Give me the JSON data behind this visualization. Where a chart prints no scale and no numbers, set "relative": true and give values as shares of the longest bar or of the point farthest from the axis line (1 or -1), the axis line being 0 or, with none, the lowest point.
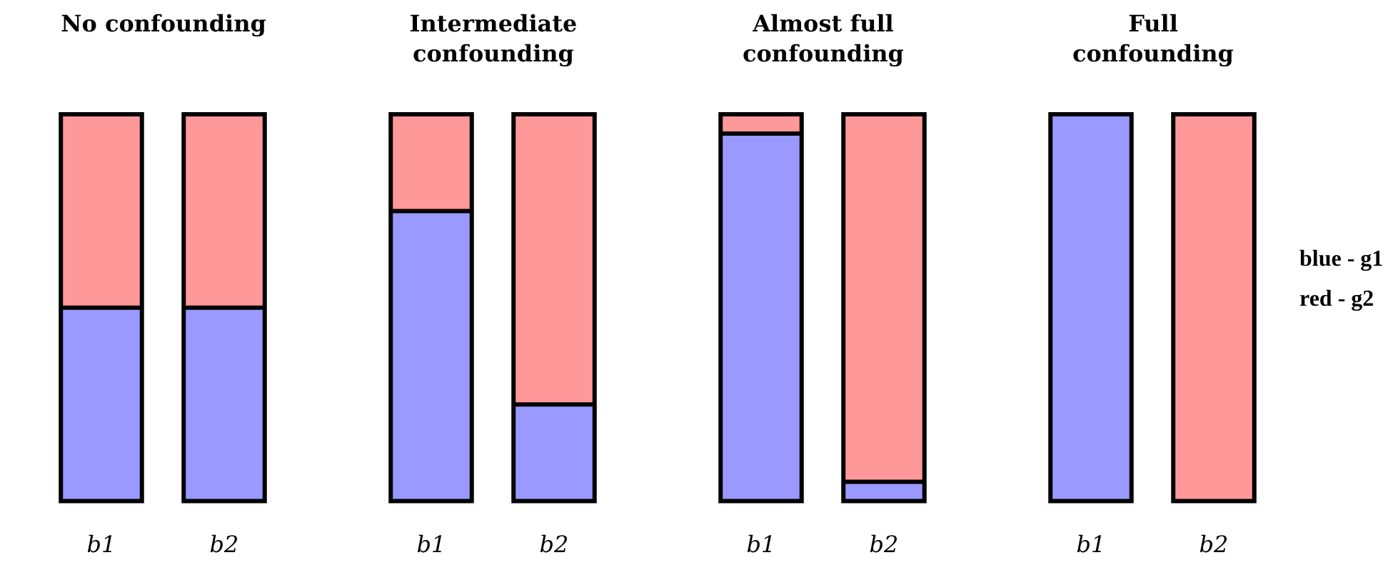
{
  "chart_data": [
    {
      "type": "bar",
      "title": "No confounding",
      "categories": [
        "b1",
        "b2"
      ],
      "stacked": true,
      "relative": true,
      "legend": false,
      "series": [
        {
          "color": "#9999ff",
          "values": [
            0.5,
            0.5
          ]
        },
        {
          "color": "#ff9999",
          "values": [
            0.5,
            0.5
          ]
        }
      ]
    },
    {
      "type": "bar",
      "title": "Intermediate confounding",
      "categories": [
        "b1",
        "b2"
      ],
      "stacked": true,
      "relative": true,
      "legend": false,
      "series": [
        {
          "color": "#9999ff",
          "values": [
            0.75,
            0.25
          ]
        },
        {
          "color": "#ff9999",
          "values": [
            0.25,
            0.75
          ]
        }
      ]
    },
    {
      "type": "bar",
      "title": "Almost full confounding",
      "categories": [
        "b1",
        "b2"
      ],
      "stacked": true,
      "relative": true,
      "legend": false,
      "series": [
        {
          "color": "#9999ff",
          "values": [
            0.95,
            0.05
          ]
        },
        {
          "color": "#ff9999",
          "values": [
            0.05,
            0.95
          ]
        }
      ]
    },
    {
      "type": "bar",
      "title": "Full confounding",
      "categories": [
        "b1",
        "b2"
      ],
      "stacked": true,
      "relative": true,
      "legend": "right",
      "series": [
        {
          "name": "blue - g1",
          "color": "#9999ff",
          "values": [
            1,
            0
          ]
        },
        {
          "name": "red - g2",
          "color": "#ff9999",
          "values": [
            0,
            1
          ]
        }
      ]
    }
  ]
}
